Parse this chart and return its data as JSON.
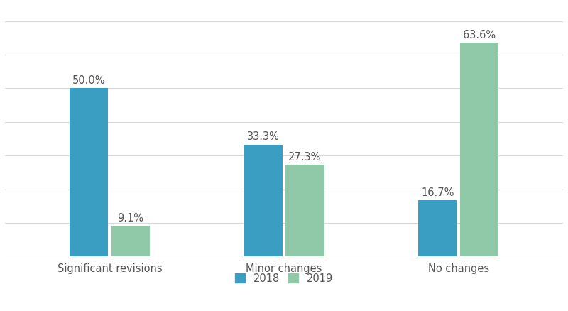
{
  "categories": [
    "Significant revisions",
    "Minor changes",
    "No changes"
  ],
  "values_2018": [
    50.0,
    33.3,
    16.7
  ],
  "values_2019": [
    9.1,
    27.3,
    63.6
  ],
  "labels_2018": [
    "50.0%",
    "33.3%",
    "16.7%"
  ],
  "labels_2019": [
    "9.1%",
    "27.3%",
    "63.6%"
  ],
  "color_2018": "#3a9ec2",
  "color_2019": "#90c9a8",
  "background_color": "#ffffff",
  "ylim": [
    0,
    72
  ],
  "bar_width": 0.22,
  "legend_labels": [
    "2018",
    "2019"
  ],
  "grid_color": "#d9d9d9",
  "label_fontsize": 10.5,
  "tick_fontsize": 10.5,
  "legend_fontsize": 10.5
}
